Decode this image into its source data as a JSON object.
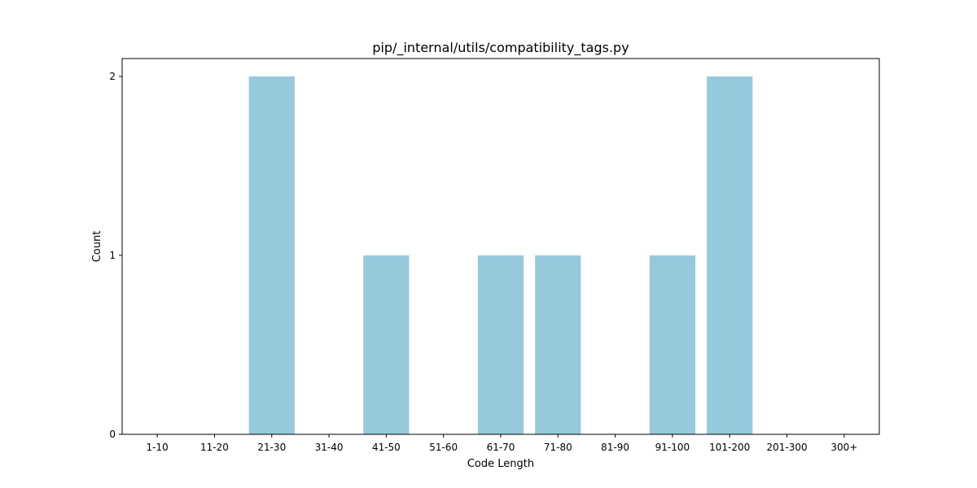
{
  "chart_data": {
    "type": "bar",
    "title": "pip/_internal/utils/compatibility_tags.py",
    "xlabel": "Code Length",
    "ylabel": "Count",
    "categories": [
      "1-10",
      "11-20",
      "21-30",
      "31-40",
      "41-50",
      "51-60",
      "61-70",
      "71-80",
      "81-90",
      "91-100",
      "101-200",
      "201-300",
      "300+"
    ],
    "values": [
      0,
      0,
      2,
      0,
      1,
      0,
      1,
      1,
      0,
      1,
      2,
      0,
      0
    ],
    "yticks": [
      "0",
      "1",
      "2"
    ],
    "ylim": [
      0,
      2.1
    ],
    "bar_color": "#96c9dc",
    "grid": false,
    "legend": false
  }
}
